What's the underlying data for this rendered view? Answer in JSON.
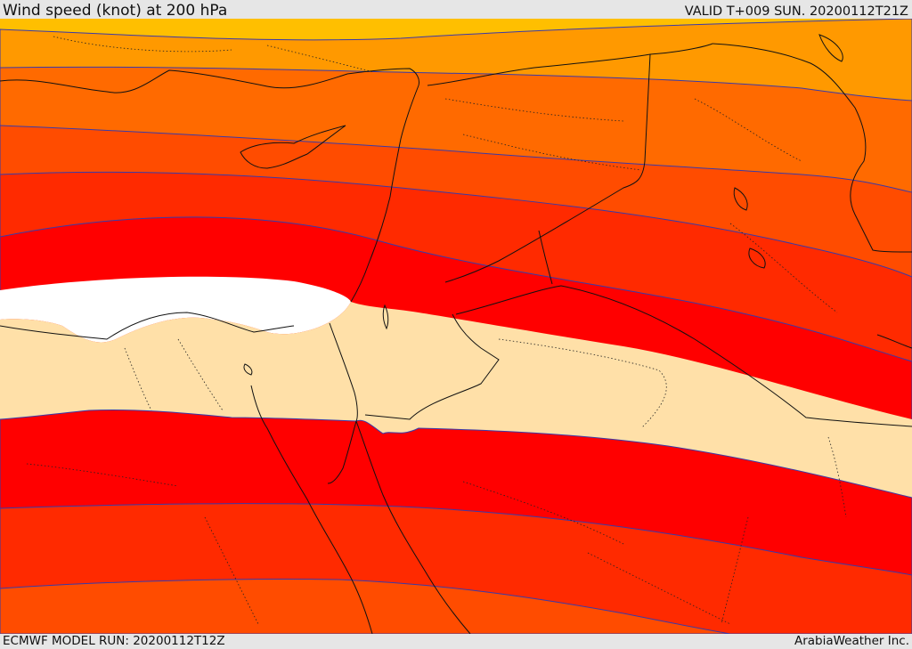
{
  "header": {
    "title": "Wind speed (knot) at 200 hPa",
    "valid": "VALID T+009 SUN. 20200112T21Z"
  },
  "footer": {
    "model_run": "ECMWF MODEL RUN: 20200112T12Z",
    "credit": "ArabiaWeather Inc."
  },
  "map": {
    "parameter": "wind speed",
    "level_hpa": 200,
    "units": "knot",
    "region": "Eastern Mediterranean / Middle East",
    "colors": {
      "band_yellow": "#ffbf00",
      "band_light_orange": "#ff9900",
      "band_orange": "#ff6a00",
      "band_dark_orange": "#ff4c00",
      "band_orange_red": "#ff2a00",
      "band_red": "#ff0000",
      "band_calm": "#ffe0a8",
      "band_white": "#ffffff",
      "contour_line": "#3a3aa8",
      "coast_line": "#111111"
    }
  }
}
